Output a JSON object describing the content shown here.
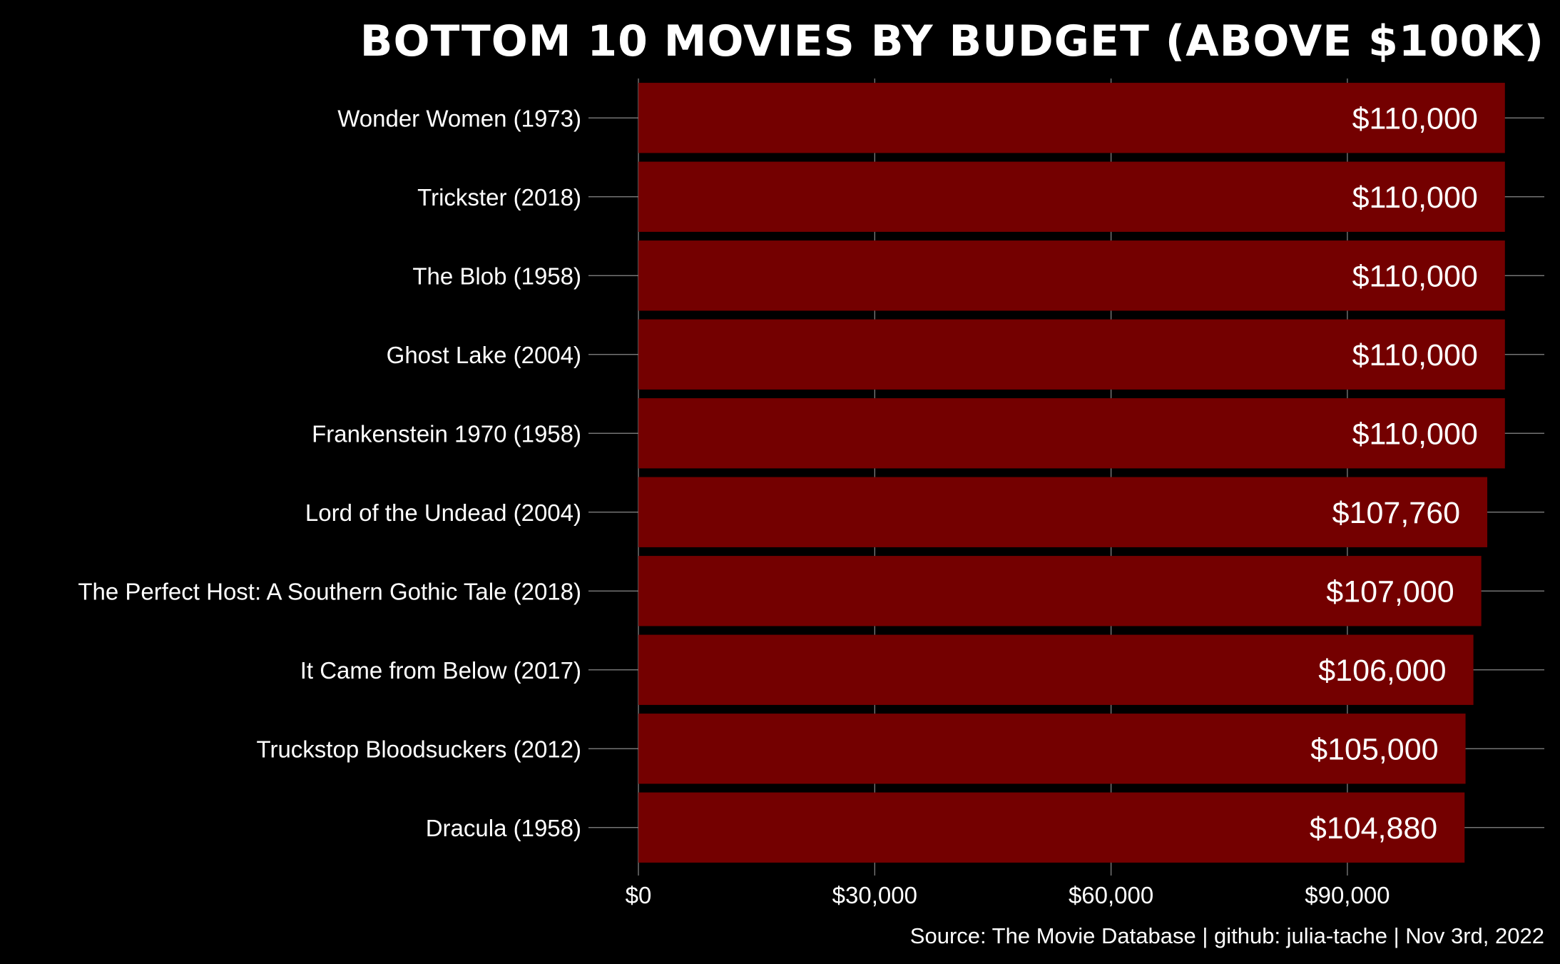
{
  "chart_data": {
    "type": "bar",
    "orientation": "horizontal",
    "title": "BOTTOM 10 MOVIES BY BUDGET (ABOVE $100K)",
    "caption": "Source: The Movie Database | github: julia-tache | Nov 3rd, 2022",
    "xlabel": "",
    "ylabel": "",
    "categories": [
      "Wonder Women (1973)",
      "Trickster (2018)",
      "The Blob (1958)",
      "Ghost Lake (2004)",
      "Frankenstein 1970 (1958)",
      "Lord of the Undead (2004)",
      "The Perfect Host: A Southern Gothic Tale (2018)",
      "It Came from Below (2017)",
      "Truckstop Bloodsuckers (2012)",
      "Dracula (1958)"
    ],
    "values": [
      110000,
      110000,
      110000,
      110000,
      110000,
      107760,
      107000,
      106000,
      105000,
      104880
    ],
    "value_labels": [
      "$110,000",
      "$110,000",
      "$110,000",
      "$110,000",
      "$110,000",
      "$107,760",
      "$107,000",
      "$106,000",
      "$105,000",
      "$104,880"
    ],
    "xlim": [
      0,
      115000
    ],
    "x_ticks": [
      0,
      30000,
      60000,
      90000
    ],
    "x_tick_labels": [
      "$0",
      "$30,000",
      "$60,000",
      "$90,000"
    ],
    "grid": true,
    "legend": "none"
  },
  "colors": {
    "background": "#000000",
    "bar": "#740000",
    "text": "#ffffff",
    "grid": "#8a8a8a"
  }
}
